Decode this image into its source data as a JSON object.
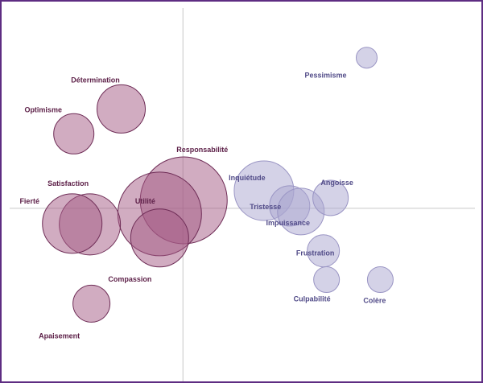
{
  "chart_data": {
    "type": "scatter",
    "subtype": "bubble",
    "title": "",
    "xlabel": "",
    "ylabel": "",
    "xlim": [
      -226,
      372
    ],
    "ylim": [
      -216,
      258
    ],
    "grid": false,
    "colors": {
      "positive_fill": "#a35a84",
      "positive_stroke": "#6e2c56",
      "positive_label": "#5c1f47",
      "negative_fill": "#aaa5cf",
      "negative_stroke": "#9a95c4",
      "negative_label": "#514b88",
      "axis": "#c8c8c8"
    },
    "points": [
      {
        "label": "Pessimisme",
        "group": "negative",
        "x": 229,
        "y": 188,
        "size": 13
      },
      {
        "label": "Détermination",
        "group": "positive",
        "x": -77,
        "y": 124,
        "size": 30
      },
      {
        "label": "Optimisme",
        "group": "positive",
        "x": -136,
        "y": 93,
        "size": 25
      },
      {
        "label": "Responsabilité",
        "group": "positive",
        "x": 1,
        "y": 10,
        "size": 54
      },
      {
        "label": "Utilité",
        "group": "positive",
        "x": -29,
        "y": -7,
        "size": 52
      },
      {
        "label": "Compassion",
        "group": "positive",
        "x": -29,
        "y": -37,
        "size": 36
      },
      {
        "label": "Satisfaction",
        "group": "positive",
        "x": -116,
        "y": -20,
        "size": 38
      },
      {
        "label": "Fierté",
        "group": "positive",
        "x": -138,
        "y": -19,
        "size": 37
      },
      {
        "label": "Apaisement",
        "group": "positive",
        "x": -114,
        "y": -119,
        "size": 23
      },
      {
        "label": "Inquiétude",
        "group": "negative",
        "x": 101,
        "y": 22,
        "size": 37
      },
      {
        "label": "Tristesse",
        "group": "negative",
        "x": 133,
        "y": 3,
        "size": 25
      },
      {
        "label": "Impuissance",
        "group": "negative",
        "x": 147,
        "y": -4,
        "size": 29
      },
      {
        "label": "Angoisse",
        "group": "negative",
        "x": 184,
        "y": 13,
        "size": 22
      },
      {
        "label": "Frustration",
        "group": "negative",
        "x": 175,
        "y": -53,
        "size": 20
      },
      {
        "label": "Culpabilité",
        "group": "negative",
        "x": 179,
        "y": -89,
        "size": 16
      },
      {
        "label": "Colère",
        "group": "negative",
        "x": 246,
        "y": -89,
        "size": 16
      }
    ]
  }
}
